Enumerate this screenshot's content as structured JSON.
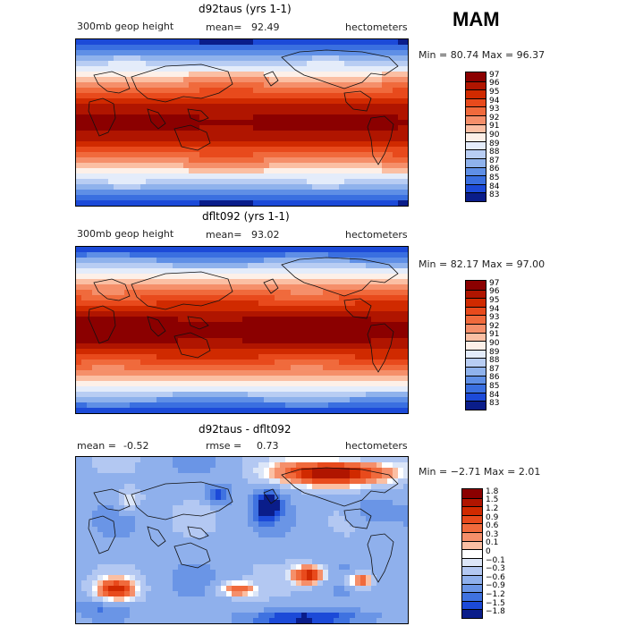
{
  "season": "MAM",
  "panels": [
    {
      "title": "d92taus (yrs 1-1)",
      "left_label": "300mb geop height",
      "mean_label": "mean=",
      "mean_value": "92.49",
      "rmse_label": "",
      "rmse_value": "",
      "units": "hectometers",
      "minmax": "Min =  80.74 Max =  96.37",
      "kind": "field",
      "legend": [
        "97",
        "96",
        "95",
        "94",
        "93",
        "92",
        "91",
        "90",
        "89",
        "88",
        "87",
        "86",
        "85",
        "84",
        "83"
      ],
      "colors": [
        "#8b0000",
        "#b01500",
        "#d02a00",
        "#e84a1c",
        "#f06a3c",
        "#f58f6a",
        "#fbbfa3",
        "#fdf0e8",
        "#e4ecfa",
        "#b8cdf3",
        "#8fb2ec",
        "#5f8fe6",
        "#3a6fe0",
        "#1c4ad8",
        "#0a1d8a"
      ]
    },
    {
      "title": "dflt092 (yrs 1-1)",
      "left_label": "300mb geop height",
      "mean_label": "mean=",
      "mean_value": "93.02",
      "rmse_label": "",
      "rmse_value": "",
      "units": "hectometers",
      "minmax": "Min =  82.17 Max =  97.00",
      "kind": "field",
      "legend": [
        "97",
        "96",
        "95",
        "94",
        "93",
        "92",
        "91",
        "90",
        "89",
        "88",
        "87",
        "86",
        "85",
        "84",
        "83"
      ],
      "colors": [
        "#8b0000",
        "#b01500",
        "#d02a00",
        "#e84a1c",
        "#f06a3c",
        "#f58f6a",
        "#fbbfa3",
        "#fdf0e8",
        "#e4ecfa",
        "#b8cdf3",
        "#8fb2ec",
        "#5f8fe6",
        "#3a6fe0",
        "#1c4ad8",
        "#0a1d8a"
      ]
    },
    {
      "title": "d92taus - dflt092",
      "left_label": "",
      "mean_label": "mean =",
      "mean_value": "-0.52",
      "rmse_label": "rmse =",
      "rmse_value": "0.73",
      "units": "hectometers",
      "minmax": "Min =  −2.71 Max =   2.01",
      "kind": "diff",
      "legend": [
        "1.8",
        "1.5",
        "1.2",
        "0.9",
        "0.6",
        "0.3",
        "0.1",
        "0",
        "−0.1",
        "−0.3",
        "−0.6",
        "−0.9",
        "−1.2",
        "−1.5",
        "−1.8"
      ],
      "colors": [
        "#8b0000",
        "#b01500",
        "#d02a00",
        "#e84a1c",
        "#f06a3c",
        "#f58f6a",
        "#fbbfa3",
        "#ffffff",
        "#dce6f8",
        "#b3c8f2",
        "#8fb0ec",
        "#6a95e6",
        "#3f72e0",
        "#1c4ad8",
        "#0a1d8a"
      ]
    }
  ]
}
